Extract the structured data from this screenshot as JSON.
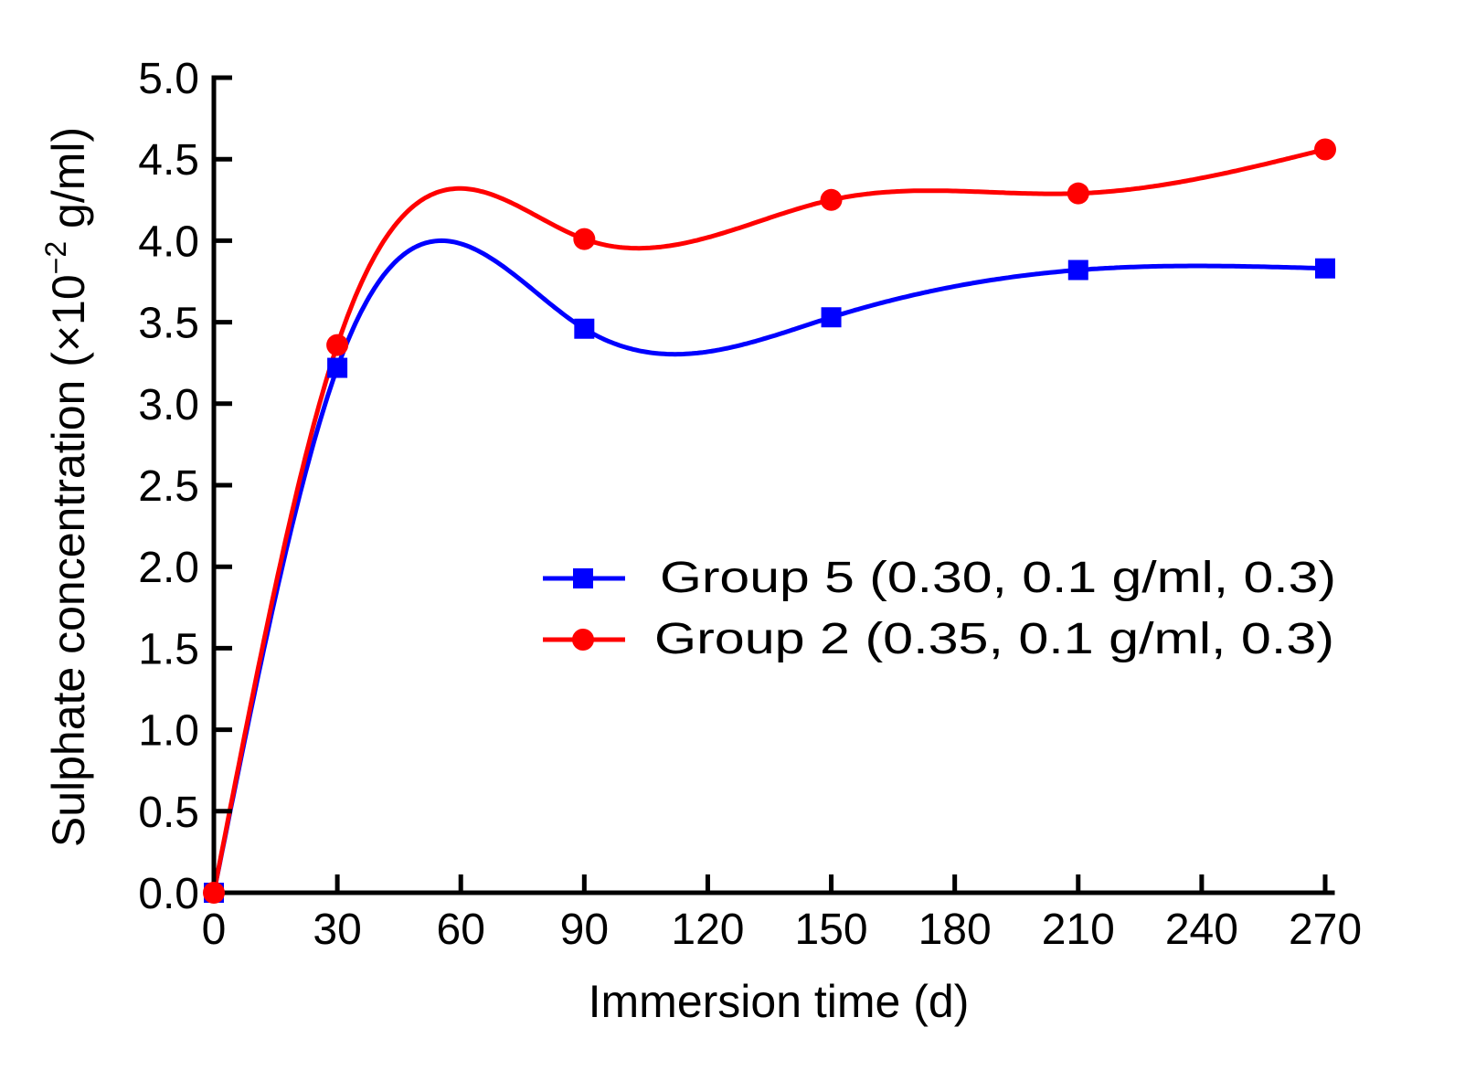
{
  "chart_data": {
    "type": "line",
    "title": "",
    "xlabel": "Immersion time (d)",
    "ylabel_main": "Sulphate concentration (×10",
    "ylabel_sup": "−2",
    "ylabel_tail": " g/ml)",
    "ylabel": "Sulphate concentration (×10−2 g/ml)",
    "xlim": [
      0,
      270
    ],
    "ylim": [
      0.0,
      5.0
    ],
    "x_ticks": [
      0,
      30,
      60,
      90,
      120,
      150,
      180,
      210,
      240,
      270
    ],
    "x_tick_labels": [
      "0",
      "30",
      "60",
      "90",
      "120",
      "150",
      "180",
      "210",
      "240",
      "270"
    ],
    "y_ticks": [
      0.0,
      0.5,
      1.0,
      1.5,
      2.0,
      2.5,
      3.0,
      3.5,
      4.0,
      4.5,
      5.0
    ],
    "y_tick_labels": [
      "0.0",
      "0.5",
      "1.0",
      "1.5",
      "2.0",
      "2.5",
      "3.0",
      "3.5",
      "4.0",
      "4.5",
      "5.0"
    ],
    "grid": false,
    "legend_position": "center-right",
    "smooth": "spline",
    "x": [
      0,
      30,
      90,
      150,
      210,
      270
    ],
    "series": [
      {
        "name": "Group 5 (0.30, 0.1 g/ml, 0.3)",
        "color": "#0000ff",
        "marker": "square",
        "values": [
          0.0,
          3.22,
          3.46,
          3.53,
          3.82,
          3.83
        ]
      },
      {
        "name": "Group 2 (0.35, 0.1 g/ml, 0.3)",
        "color": "#ff0000",
        "marker": "circle",
        "values": [
          0.0,
          3.36,
          4.01,
          4.25,
          4.29,
          4.56
        ]
      }
    ]
  }
}
